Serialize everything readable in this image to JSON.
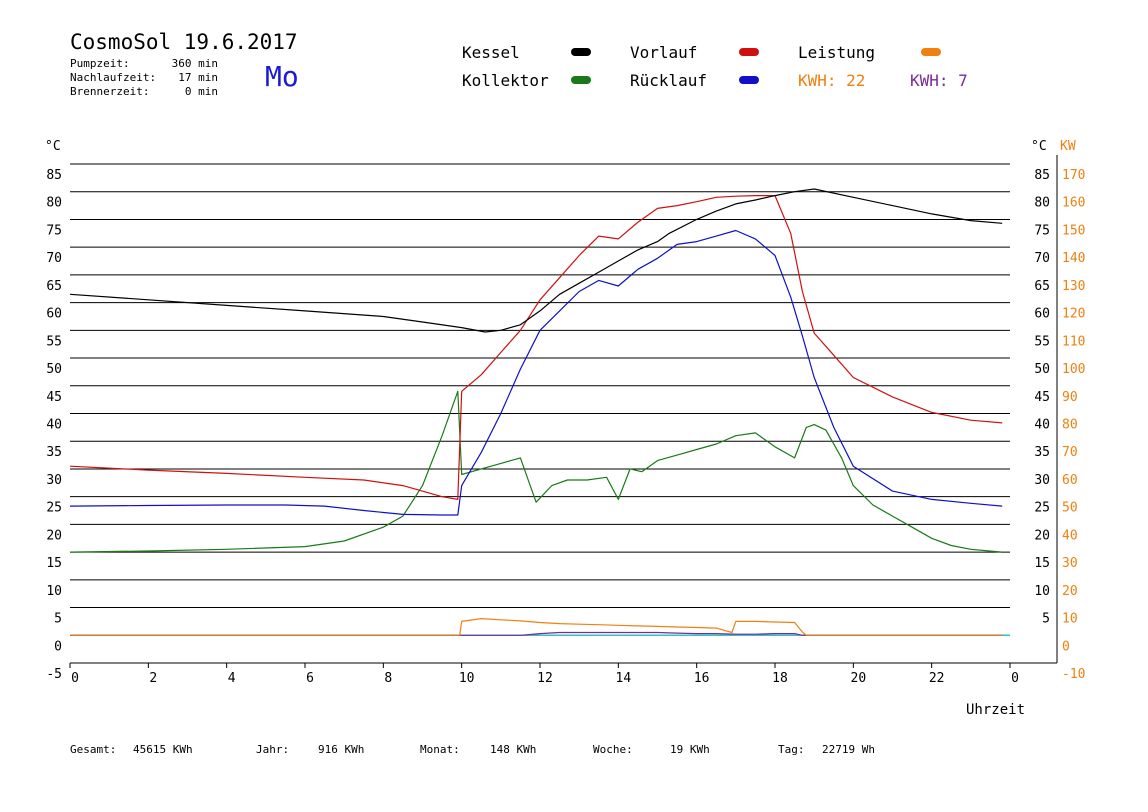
{
  "header": {
    "title": "CosmoSol 19.6.2017",
    "day": "Mo",
    "meta": [
      {
        "label": "Pumpzeit:",
        "value": "360 min"
      },
      {
        "label": "Nachlaufzeit:",
        "value": "17 min"
      },
      {
        "label": "Brennerzeit:",
        "value": "0 min"
      }
    ]
  },
  "legend": {
    "kessel": "Kessel",
    "kollektor": "Kollektor",
    "vorlauf": "Vorlauf",
    "ruecklauf": "Rücklauf",
    "leistung": "Leistung",
    "kwh1": "KWH: 22",
    "kwh2": "KWH: 7"
  },
  "colors": {
    "kessel": "#000000",
    "kollektor": "#1a7a1a",
    "vorlauf": "#d01010",
    "ruecklauf": "#1010c8",
    "leistung": "#f08010",
    "kwh2": "#7a2a9a",
    "baseline": "#20d0d0",
    "day": "#1b1bd6"
  },
  "chart_data": {
    "type": "line",
    "x_label": "Uhrzeit",
    "y_unit_left": "°C",
    "y_unit_right_c": "°C",
    "y_unit_right_kw": "KW",
    "x_ticks": [
      "0",
      "2",
      "4",
      "6",
      "8",
      "10",
      "12",
      "14",
      "16",
      "18",
      "20",
      "22",
      "0"
    ],
    "ylim": [
      -5,
      85
    ],
    "y_ticks_left": [
      "85",
      "80",
      "75",
      "70",
      "65",
      "60",
      "55",
      "50",
      "45",
      "40",
      "35",
      "30",
      "25",
      "20",
      "15",
      "10",
      "5",
      "0",
      "-5"
    ],
    "y_ticks_right_c": [
      "85",
      "80",
      "75",
      "70",
      "65",
      "60",
      "55",
      "50",
      "45",
      "40",
      "35",
      "30",
      "25",
      "20",
      "15",
      "10",
      "5"
    ],
    "y_ticks_right_kw": [
      "170",
      "160",
      "150",
      "140",
      "130",
      "120",
      "110",
      "100",
      "90",
      "80",
      "70",
      "60",
      "50",
      "40",
      "30",
      "20",
      "10",
      "0",
      "-10"
    ],
    "y_ticks_right_kw_values": [
      170,
      160,
      150,
      140,
      130,
      120,
      110,
      100,
      90,
      80,
      70,
      60,
      50,
      40,
      30,
      20,
      10,
      0,
      -10
    ],
    "grid": true,
    "series": [
      {
        "name": "Kessel",
        "key": "kessel",
        "x": [
          0,
          2,
          4,
          6,
          8,
          9,
          10,
          10.6,
          11,
          11.5,
          12,
          12.5,
          13,
          13.5,
          14,
          14.5,
          15,
          15.3,
          16,
          16.5,
          17,
          17.5,
          18,
          18.5,
          19,
          20,
          21,
          22,
          23,
          23.8
        ],
        "y": [
          61.5,
          60.5,
          59.5,
          58.5,
          57.5,
          56.5,
          55.5,
          54.7,
          55,
          56,
          58.5,
          61.5,
          63.5,
          65.5,
          67.5,
          69.5,
          71,
          72.5,
          75,
          76.5,
          77.8,
          78.5,
          79.3,
          80,
          80.5,
          79,
          77.5,
          76,
          74.8,
          74.3
        ]
      },
      {
        "name": "Vorlauf",
        "key": "vorlauf",
        "x": [
          0,
          2,
          4,
          6,
          7.5,
          8.5,
          9.5,
          9.9,
          10,
          10.5,
          11,
          11.5,
          12,
          12.5,
          13,
          13.5,
          14,
          14.5,
          15,
          15.5,
          16,
          16.5,
          17,
          17.5,
          18,
          18.4,
          18.7,
          19,
          19.5,
          20,
          21,
          22,
          23,
          23.8
        ],
        "y": [
          30.5,
          29.8,
          29.2,
          28.5,
          28,
          27,
          25,
          24.5,
          44,
          47,
          51,
          55,
          60.5,
          64.5,
          68.5,
          72,
          71.5,
          74.5,
          77,
          77.5,
          78.2,
          79,
          79.2,
          79.3,
          79.3,
          72.5,
          62,
          54.5,
          50.5,
          46.5,
          43,
          40.2,
          38.8,
          38.3
        ]
      },
      {
        "name": "Rücklauf",
        "key": "ruecklauf",
        "x": [
          0,
          2,
          4,
          5.5,
          6.5,
          7.5,
          8.5,
          9.5,
          9.9,
          10,
          10.5,
          11,
          11.5,
          12,
          12.5,
          13,
          13.5,
          14,
          14.5,
          15,
          15.5,
          16,
          16.5,
          17,
          17.5,
          18,
          18.4,
          18.7,
          19,
          19.5,
          20,
          21,
          22,
          23,
          23.8
        ],
        "y": [
          23.3,
          23.4,
          23.5,
          23.5,
          23.3,
          22.5,
          21.8,
          21.7,
          21.7,
          27,
          33,
          40,
          48,
          55,
          58.5,
          62,
          64,
          63,
          66,
          68,
          70.5,
          71,
          72,
          73,
          71.5,
          68.5,
          61,
          54,
          46.5,
          37.5,
          30.5,
          26,
          24.5,
          23.8,
          23.3
        ]
      },
      {
        "name": "Kollektor",
        "key": "kollektor",
        "x": [
          0,
          2,
          4,
          6,
          7,
          8,
          8.5,
          9,
          9.5,
          9.9,
          10,
          10.5,
          11,
          11.5,
          11.9,
          12.3,
          12.7,
          13.2,
          13.7,
          14,
          14.3,
          14.6,
          15,
          15.5,
          16,
          16.5,
          17,
          17.5,
          18,
          18.5,
          18.8,
          19,
          19.3,
          19.7,
          20,
          20.5,
          21,
          21.5,
          22,
          22.5,
          23,
          23.8
        ],
        "y": [
          15,
          15.2,
          15.5,
          16,
          17,
          19.5,
          21.5,
          27,
          36,
          44,
          29,
          30,
          31,
          32,
          24,
          27,
          28,
          28,
          28.5,
          24.5,
          30,
          29.5,
          31.5,
          32.5,
          33.5,
          34.5,
          36,
          36.5,
          34,
          32,
          37.5,
          38,
          37,
          32,
          27,
          23.5,
          21.5,
          19.5,
          17.5,
          16.2,
          15.5,
          15
        ]
      },
      {
        "name": "Leistung",
        "key": "leistung",
        "x": [
          0,
          9.95,
          10,
          10.5,
          11,
          11.5,
          12,
          12.5,
          13,
          13.5,
          14,
          14.5,
          15,
          15.5,
          16,
          16.5,
          16.9,
          17,
          17.5,
          18,
          18.5,
          18.7,
          18.8,
          23.8
        ],
        "y": [
          0,
          0,
          2.5,
          3,
          2.8,
          2.6,
          2.3,
          2.1,
          2,
          1.9,
          1.8,
          1.7,
          1.6,
          1.5,
          1.4,
          1.3,
          0.5,
          2.5,
          2.5,
          2.4,
          2.3,
          0.6,
          0,
          0
        ]
      },
      {
        "name": "KWH: 7",
        "key": "kwh2",
        "x": [
          0,
          11.5,
          12,
          12.5,
          13,
          13.5,
          14,
          14.5,
          15,
          15.5,
          16,
          16.5,
          17,
          17.5,
          18,
          18.5,
          18.7,
          23.8
        ],
        "y": [
          0,
          0,
          0.3,
          0.5,
          0.5,
          0.5,
          0.5,
          0.5,
          0.5,
          0.4,
          0.3,
          0.3,
          0.2,
          0.2,
          0.3,
          0.3,
          0,
          0
        ]
      }
    ]
  },
  "footer": {
    "gesamt_label": "Gesamt:",
    "gesamt_value": "45615 KWh",
    "jahr_label": "Jahr:",
    "jahr_value": "916 KWh",
    "monat_label": "Monat:",
    "monat_value": "148 KWh",
    "woche_label": "Woche:",
    "woche_value": "19 KWh",
    "tag_label": "Tag:",
    "tag_value": "22719 Wh"
  }
}
